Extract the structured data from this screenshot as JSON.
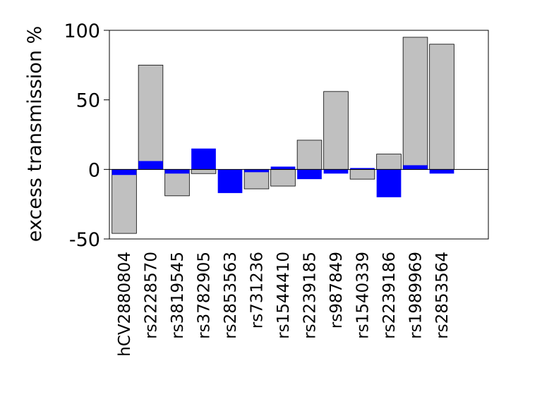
{
  "chart_data": {
    "type": "bar",
    "title": "",
    "xlabel": "",
    "ylabel": "excess transmission %",
    "ylim": [
      -50,
      100
    ],
    "yticks": [
      100,
      50,
      0,
      -50
    ],
    "grid": false,
    "legend": "none",
    "categories": [
      "hCV2880804",
      "rs2228570",
      "rs3819545",
      "rs3782905",
      "rs2853563",
      "rs731236",
      "rs1544410",
      "rs2239185",
      "rs987849",
      "rs1540339",
      "rs2239186",
      "rs1989969",
      "rs2853564"
    ],
    "series": [
      {
        "values": [
          -46,
          75,
          -19,
          -3,
          0,
          -14,
          -12,
          21,
          56,
          -7,
          11,
          95,
          90
        ],
        "color": "#c0c0c0"
      },
      {
        "values": [
          -4,
          6,
          -3,
          15,
          -17,
          -2,
          2,
          -7,
          -3,
          1,
          -20,
          3,
          -3
        ],
        "color": "#0000ff"
      }
    ]
  }
}
